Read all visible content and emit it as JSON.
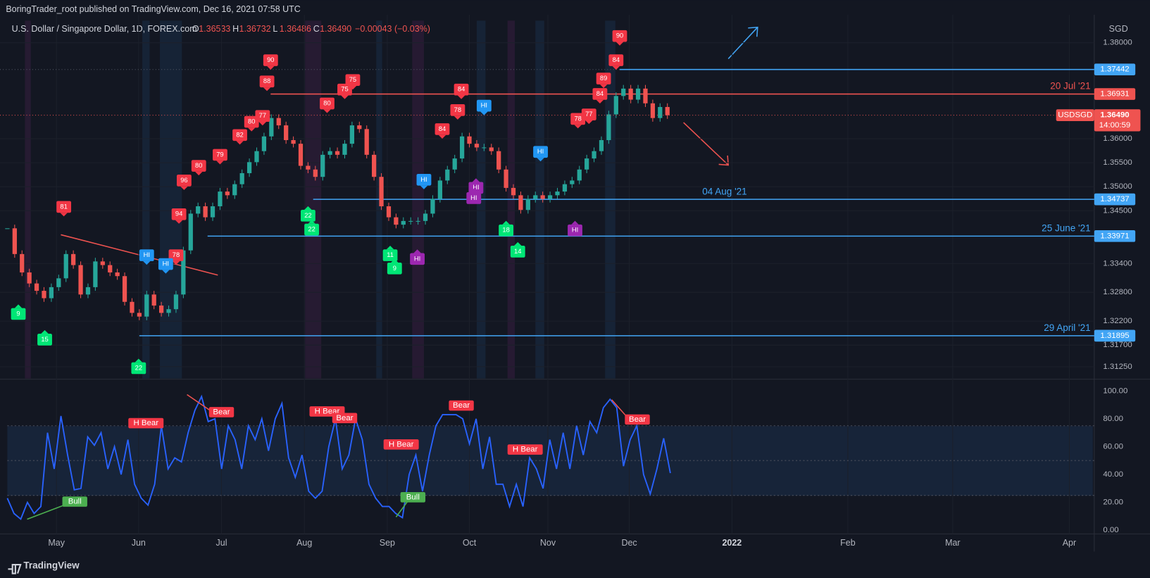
{
  "header": {
    "publisher": "BoringTrader_root published on TradingView.com, Dec 16, 2021 07:58 UTC",
    "symbol": "U.S. Dollar / Singapore Dollar, 1D, FOREX.com",
    "ohlc": [
      {
        "key": "O",
        "text": "1.36533"
      },
      {
        "key": "H",
        "text": "1.36732"
      },
      {
        "key": "L",
        "text": "1.36486"
      },
      {
        "key": "C",
        "text": "1.36490"
      }
    ],
    "change": "−0.00043 (−0.03%)",
    "currency": "SGD"
  },
  "footer": "TradingView",
  "chart_data": {
    "type": "candlestick",
    "candles": {
      "close": [
        1.34133,
        1.33597,
        1.33214,
        1.32984,
        1.32831,
        1.32677,
        1.32907,
        1.33091,
        1.33597,
        1.33367,
        1.32754,
        1.32907,
        1.33443,
        1.33367,
        1.33214,
        1.33137,
        1.32601,
        1.32371,
        1.32294,
        1.32754,
        1.32524,
        1.32371,
        1.32448,
        1.32754,
        1.33673,
        1.34439,
        1.34592,
        1.34363,
        1.34592,
        1.34899,
        1.34822,
        1.35052,
        1.35282,
        1.35512,
        1.35741,
        1.36048,
        1.36431,
        1.36278,
        1.35971,
        1.35895,
        1.35435,
        1.35358,
        1.35205,
        1.35665,
        1.35741,
        1.35665,
        1.35895,
        1.36278,
        1.36201,
        1.35665,
        1.35205,
        1.34592,
        1.34363,
        1.34209,
        1.34286,
        1.34286,
        1.34286,
        1.34439,
        1.34746,
        1.35129,
        1.35358,
        1.35588,
        1.36048,
        1.35895,
        1.35818,
        1.35818,
        1.35741,
        1.35358,
        1.34975,
        1.34822,
        1.34516,
        1.34746,
        1.34822,
        1.34746,
        1.34822,
        1.34899,
        1.35052,
        1.35129,
        1.35358,
        1.35588,
        1.35741,
        1.35971,
        1.36507,
        1.3689,
        1.37044,
        1.36814,
        1.37044,
        1.36737,
        1.36431,
        1.36661,
        1.3649
      ],
      "up_color": "#26a69a",
      "down_color": "#ef5350"
    },
    "ylim": [
      1.31005,
      1.38582
    ],
    "yticks": [
      {
        "value": 1.38,
        "label": "1.38000"
      },
      {
        "value": 1.36,
        "label": "1.36000"
      },
      {
        "value": 1.355,
        "label": "1.35500"
      },
      {
        "value": 1.35,
        "label": "1.35000"
      },
      {
        "value": 1.345,
        "label": "1.34500"
      },
      {
        "value": 1.334,
        "label": "1.33400"
      },
      {
        "value": 1.328,
        "label": "1.32800"
      },
      {
        "value": 1.322,
        "label": "1.32200"
      },
      {
        "value": 1.317,
        "label": "1.31700"
      },
      {
        "value": 1.3125,
        "label": "1.31250"
      }
    ],
    "levels": [
      {
        "value": 1.37442,
        "label": "1.37442",
        "color": "#42a5f5"
      },
      {
        "value": 1.36931,
        "label": "1.36931",
        "date": "20 Jul '21",
        "color": "#ef5350"
      },
      {
        "value": 1.34737,
        "label": "1.34737",
        "date": "04 Aug '21",
        "color": "#42a5f5"
      },
      {
        "value": 1.33971,
        "label": "1.33971",
        "date": "25 June '21",
        "color": "#42a5f5"
      },
      {
        "value": 1.31895,
        "label": "1.31895",
        "date": "29 April '21",
        "color": "#42a5f5"
      }
    ],
    "last_price": {
      "value": 1.3649,
      "label": "1.36490",
      "name": "USDSGD",
      "countdown": "14:00:59",
      "color": "#ef5350"
    },
    "sell_signals": [
      "81",
      "94",
      "78",
      "96",
      "80",
      "79",
      "82",
      "80",
      "77",
      "88",
      "90",
      "80",
      "75",
      "75",
      "84",
      "78",
      "84",
      "78",
      "77",
      "84",
      "89",
      "84",
      "90"
    ],
    "hi_blue": [
      "HI",
      "HI",
      "HI",
      "HI",
      "HI"
    ],
    "hi_purple": [
      "HI",
      "HI",
      "HI",
      "HI"
    ],
    "buy_signals": [
      "9",
      "15",
      "22",
      "22",
      "22",
      "11",
      "9",
      "18",
      "14"
    ],
    "xaxis_labels": [
      "May",
      "Jun",
      "Jul",
      "Aug",
      "Sep",
      "Oct",
      "Nov",
      "Dec",
      "2022",
      "Feb",
      "Mar",
      "Apr"
    ],
    "oscillator": {
      "values": [
        23,
        12,
        8,
        20,
        12,
        17,
        70,
        44,
        82,
        54,
        29,
        30,
        67,
        61,
        70,
        44,
        60,
        40,
        65,
        33,
        23,
        18,
        33,
        75,
        44,
        52,
        49,
        70,
        86,
        96,
        78,
        80,
        44,
        75,
        65,
        44,
        75,
        65,
        80,
        57,
        80,
        91,
        52,
        38,
        54,
        28,
        23,
        28,
        60,
        80,
        44,
        54,
        80,
        65,
        33,
        23,
        17,
        17,
        12,
        9,
        40,
        54,
        28,
        54,
        75,
        83,
        83,
        83,
        80,
        62,
        80,
        44,
        67,
        33,
        33,
        17,
        33,
        17,
        52,
        44,
        30,
        65,
        44,
        70,
        44,
        75,
        54,
        78,
        70,
        88,
        94,
        88,
        46,
        65,
        75,
        40,
        26,
        44,
        66,
        41
      ],
      "color": "#2962ff",
      "ylim": [
        0,
        100
      ],
      "yticks": [
        {
          "value": 0,
          "label": "0.00"
        },
        {
          "value": 20,
          "label": "20.00"
        },
        {
          "value": 40,
          "label": "40.00"
        },
        {
          "value": 60,
          "label": "60.00"
        },
        {
          "value": 80,
          "label": "80.00"
        },
        {
          "value": 100,
          "label": "100.00"
        }
      ],
      "bands": [
        25,
        50,
        75
      ],
      "signals": [
        "H Bear",
        "Bear",
        "H Bear",
        "Bear",
        "H Bear",
        "Bear",
        "H Bear",
        "Bear",
        "Bull",
        "Bull"
      ]
    }
  }
}
